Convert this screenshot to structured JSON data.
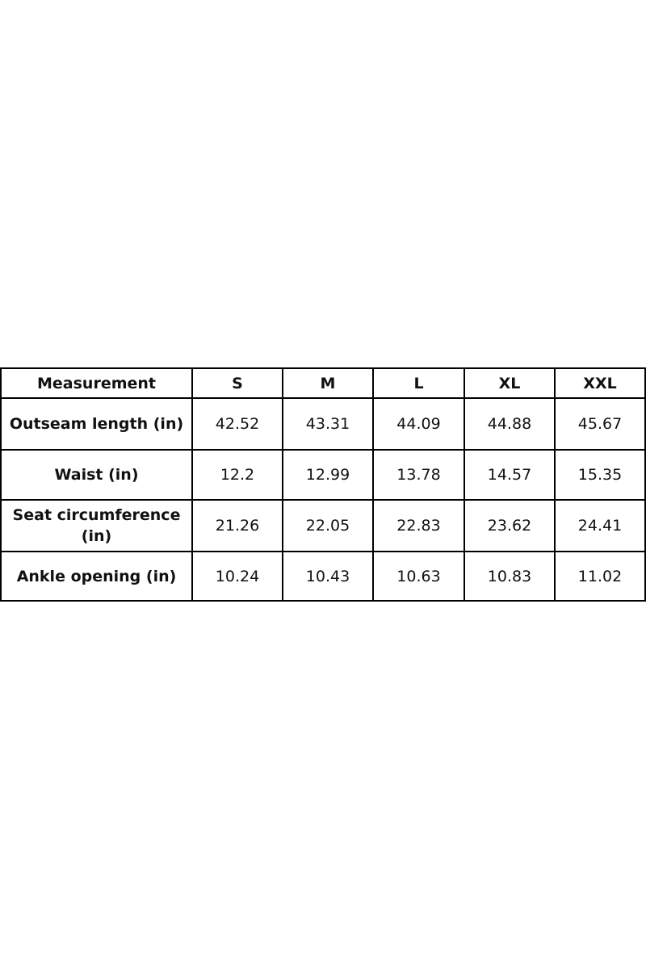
{
  "table": {
    "header": [
      "Measurement",
      "S",
      "M",
      "L",
      "XL",
      "XXL"
    ],
    "rows": [
      [
        "Outseam length (in)",
        "42.52",
        "43.31",
        "44.09",
        "44.88",
        "45.67"
      ],
      [
        "Waist (in)",
        "12.2",
        "12.99",
        "13.78",
        "14.57",
        "15.35"
      ],
      [
        "Seat circumference (in)",
        "21.26",
        "22.05",
        "22.83",
        "23.62",
        "24.41"
      ],
      [
        "Ankle opening (in)",
        "10.24",
        "10.43",
        "10.63",
        "10.83",
        "11.02"
      ]
    ]
  }
}
